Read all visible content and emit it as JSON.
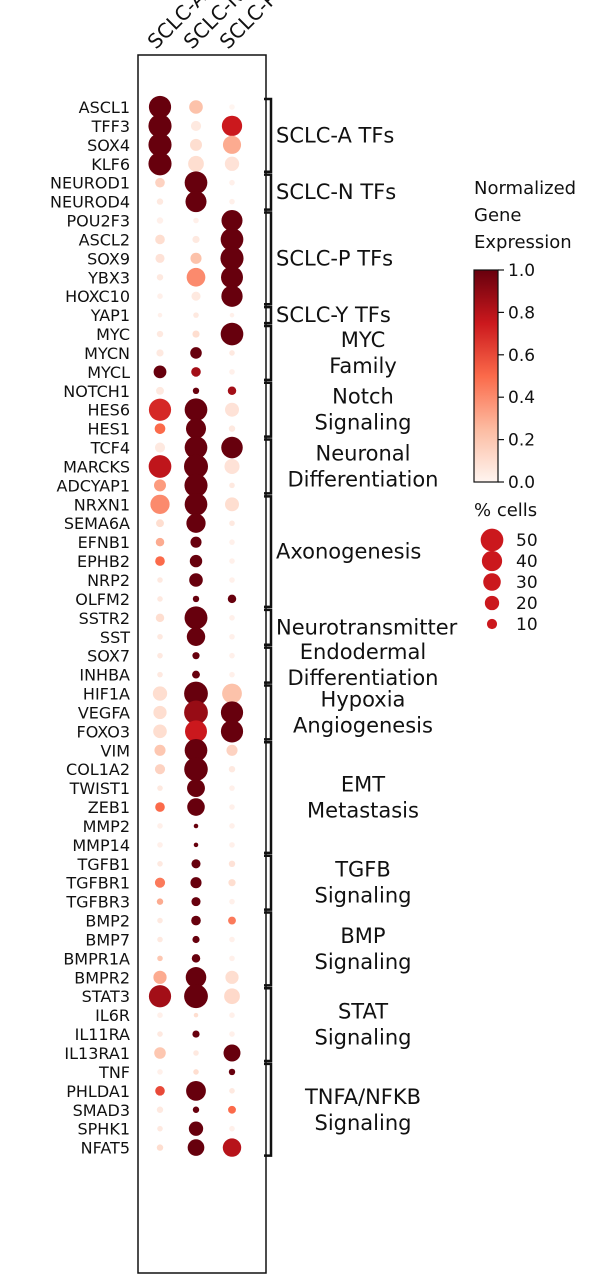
{
  "chart_data": {
    "type": "dotplot",
    "columns": [
      "SCLC-A",
      "SCLC-N",
      "SCLC-P"
    ],
    "genes": [
      "ASCL1",
      "TFF3",
      "SOX4",
      "KLF6",
      "NEUROD1",
      "NEUROD4",
      "POU2F3",
      "ASCL2",
      "SOX9",
      "YBX3",
      "HOXC10",
      "YAP1",
      "MYC",
      "MYCN",
      "MYCL",
      "NOTCH1",
      "HES6",
      "HES1",
      "TCF4",
      "MARCKS",
      "ADCYAP1",
      "NRXN1",
      "SEMA6A",
      "EFNB1",
      "EPHB2",
      "NRP2",
      "OLFM2",
      "SSTR2",
      "SST",
      "SOX7",
      "INHBA",
      "HIF1A",
      "VEGFA",
      "FOXO3",
      "VIM",
      "COL1A2",
      "TWIST1",
      "ZEB1",
      "MMP2",
      "MMP14",
      "TGFB1",
      "TGFBR1",
      "TGFBR3",
      "BMP2",
      "BMP7",
      "BMPR1A",
      "BMPR2",
      "STAT3",
      "IL6R",
      "IL11RA",
      "IL13RA1",
      "TNF",
      "PHLDA1",
      "SMAD3",
      "SPHK1",
      "NFAT5"
    ],
    "expression": [
      [
        1.0,
        0.22,
        0.0
      ],
      [
        1.0,
        0.05,
        0.75
      ],
      [
        1.0,
        0.1,
        0.3
      ],
      [
        1.0,
        0.1,
        0.08
      ],
      [
        0.15,
        1.0,
        0.02
      ],
      [
        0.05,
        1.0,
        0.02
      ],
      [
        0.02,
        0.02,
        1.0
      ],
      [
        0.1,
        0.05,
        1.0
      ],
      [
        0.08,
        0.22,
        1.0
      ],
      [
        0.05,
        0.4,
        1.0
      ],
      [
        0.02,
        0.05,
        1.0
      ],
      [
        0.02,
        0.05,
        0.02
      ],
      [
        0.05,
        0.1,
        1.0
      ],
      [
        0.05,
        1.0,
        0.05
      ],
      [
        1.0,
        0.85,
        0.02
      ],
      [
        0.05,
        1.0,
        0.85
      ],
      [
        0.7,
        1.0,
        0.08
      ],
      [
        0.5,
        1.0,
        0.05
      ],
      [
        0.05,
        1.0,
        1.0
      ],
      [
        0.78,
        1.0,
        0.08
      ],
      [
        0.35,
        1.0,
        0.05
      ],
      [
        0.4,
        1.0,
        0.1
      ],
      [
        0.1,
        1.0,
        0.05
      ],
      [
        0.3,
        1.0,
        0.02
      ],
      [
        0.5,
        1.0,
        0.02
      ],
      [
        0.05,
        1.0,
        0.02
      ],
      [
        0.05,
        1.0,
        1.0
      ],
      [
        0.1,
        1.0,
        0.02
      ],
      [
        0.05,
        1.0,
        0.02
      ],
      [
        0.05,
        1.0,
        0.02
      ],
      [
        0.05,
        1.0,
        0.02
      ],
      [
        0.1,
        1.0,
        0.22
      ],
      [
        0.1,
        0.88,
        1.0
      ],
      [
        0.1,
        0.75,
        1.0
      ],
      [
        0.2,
        1.0,
        0.15
      ],
      [
        0.15,
        1.0,
        0.05
      ],
      [
        0.05,
        1.0,
        0.02
      ],
      [
        0.5,
        1.0,
        0.02
      ],
      [
        0.02,
        1.0,
        0.02
      ],
      [
        0.02,
        1.0,
        0.02
      ],
      [
        0.05,
        1.0,
        0.08
      ],
      [
        0.45,
        1.0,
        0.1
      ],
      [
        0.3,
        1.0,
        0.02
      ],
      [
        0.05,
        1.0,
        0.45
      ],
      [
        0.05,
        1.0,
        0.02
      ],
      [
        0.2,
        1.0,
        0.02
      ],
      [
        0.3,
        1.0,
        0.1
      ],
      [
        0.85,
        1.0,
        0.12
      ],
      [
        0.02,
        0.1,
        0.02
      ],
      [
        0.05,
        1.0,
        0.02
      ],
      [
        0.2,
        0.05,
        1.0
      ],
      [
        0.02,
        0.1,
        1.0
      ],
      [
        0.6,
        1.0,
        0.05
      ],
      [
        0.05,
        1.0,
        0.5
      ],
      [
        0.05,
        1.0,
        0.02
      ],
      [
        0.1,
        1.0,
        0.8
      ]
    ],
    "pct_cells": [
      [
        48,
        18,
        3
      ],
      [
        52,
        10,
        40
      ],
      [
        52,
        14,
        32
      ],
      [
        52,
        24,
        20
      ],
      [
        9,
        50,
        3
      ],
      [
        4,
        43,
        3
      ],
      [
        4,
        3,
        43
      ],
      [
        9,
        5,
        50
      ],
      [
        8,
        12,
        52
      ],
      [
        4,
        34,
        47
      ],
      [
        3,
        8,
        44
      ],
      [
        2,
        3,
        2
      ],
      [
        4,
        5,
        50
      ],
      [
        5,
        13,
        3
      ],
      [
        16,
        9,
        3
      ],
      [
        6,
        4,
        7
      ],
      [
        48,
        50,
        19
      ],
      [
        11,
        39,
        4
      ],
      [
        10,
        50,
        45
      ],
      [
        50,
        56,
        22
      ],
      [
        14,
        52,
        3
      ],
      [
        36,
        50,
        19
      ],
      [
        6,
        36,
        3
      ],
      [
        7,
        12,
        3
      ],
      [
        9,
        15,
        3
      ],
      [
        3,
        18,
        3
      ],
      [
        3,
        4,
        7
      ],
      [
        7,
        51,
        3
      ],
      [
        3,
        33,
        3
      ],
      [
        3,
        5,
        3
      ],
      [
        3,
        6,
        3
      ],
      [
        20,
        55,
        38
      ],
      [
        17,
        55,
        48
      ],
      [
        18,
        47,
        48
      ],
      [
        12,
        50,
        12
      ],
      [
        10,
        54,
        4
      ],
      [
        3,
        31,
        3
      ],
      [
        9,
        30,
        3
      ],
      [
        3,
        2,
        3
      ],
      [
        3,
        2,
        3
      ],
      [
        3,
        8,
        4
      ],
      [
        10,
        12,
        5
      ],
      [
        4,
        8,
        3
      ],
      [
        3,
        9,
        6
      ],
      [
        3,
        5,
        3
      ],
      [
        3,
        7,
        3
      ],
      [
        17,
        41,
        17
      ],
      [
        48,
        55,
        24
      ],
      [
        3,
        2,
        3
      ],
      [
        3,
        5,
        3
      ],
      [
        13,
        3,
        28
      ],
      [
        3,
        3,
        4
      ],
      [
        9,
        38,
        3
      ],
      [
        4,
        4,
        6
      ],
      [
        3,
        20,
        3
      ],
      [
        4,
        27,
        33
      ]
    ],
    "groups": [
      {
        "label": "SCLC-A TFs",
        "start": 0,
        "end": 3
      },
      {
        "label": "SCLC-N TFs",
        "start": 4,
        "end": 5
      },
      {
        "label": "SCLC-P TFs",
        "start": 6,
        "end": 10
      },
      {
        "label": "SCLC-Y TFs",
        "start": 11,
        "end": 11
      },
      {
        "label": "MYC\nFamily",
        "start": 12,
        "end": 14
      },
      {
        "label": "Notch\nSignaling",
        "start": 15,
        "end": 17
      },
      {
        "label": "Neuronal\nDifferentiation",
        "start": 18,
        "end": 20
      },
      {
        "label": "Axonogenesis",
        "start": 21,
        "end": 26
      },
      {
        "label": "Neurotransmitter",
        "start": 27,
        "end": 28
      },
      {
        "label": "Endodermal\nDifferentiation",
        "start": 29,
        "end": 30
      },
      {
        "label": "Hypoxia\nAngiogenesis",
        "start": 31,
        "end": 33
      },
      {
        "label": "EMT\nMetastasis",
        "start": 34,
        "end": 39
      },
      {
        "label": "TGFB\nSignaling",
        "start": 40,
        "end": 42
      },
      {
        "label": "BMP\nSignaling",
        "start": 43,
        "end": 46
      },
      {
        "label": "STAT\nSignaling",
        "start": 47,
        "end": 50
      },
      {
        "label": "TNFA/NFKB\nSignaling",
        "start": 51,
        "end": 55
      }
    ],
    "colorbar": {
      "title": [
        "Normalized",
        "Gene",
        "Expression"
      ],
      "range": [
        0.0,
        1.0
      ],
      "ticks": [
        "0.0",
        "0.2",
        "0.4",
        "0.6",
        "0.8",
        "1.0"
      ],
      "colors": [
        "#fff5f0",
        "#fcbba1",
        "#fb6a4a",
        "#cb181d",
        "#67000d"
      ]
    },
    "size_legend": {
      "title": "% cells",
      "values": [
        50,
        40,
        30,
        20,
        10
      ],
      "labels": [
        "50",
        "40",
        "30",
        "20",
        "10"
      ]
    }
  }
}
